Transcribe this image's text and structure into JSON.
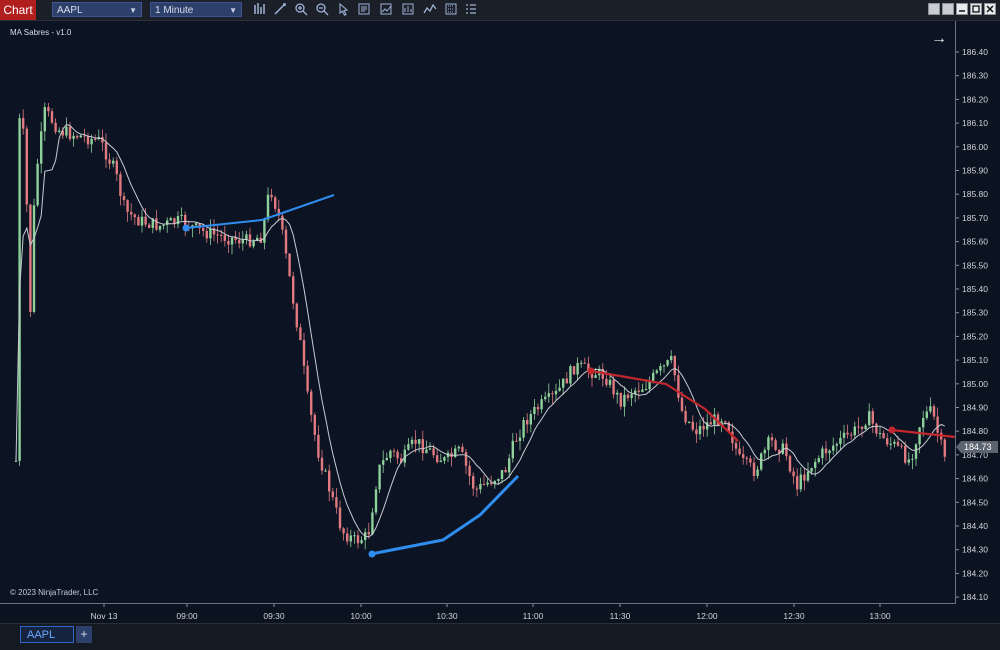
{
  "toolbar": {
    "chart_label": "Chart",
    "instrument": "AAPL",
    "interval": "1 Minute",
    "icons": [
      "bar-type-icon",
      "draw-icon",
      "zoom-in-icon",
      "zoom-out-icon",
      "pointer-icon",
      "properties-icon",
      "indicators-icon",
      "strategies-icon",
      "templates-icon",
      "data-box-icon",
      "menu-icon"
    ],
    "window_buttons": [
      "tile-icon",
      "restore-icon",
      "minimize-icon",
      "maximize-icon",
      "close-icon"
    ]
  },
  "indicator_label": "MA Sabres - v1.0",
  "copyright": "© 2023 NinjaTrader, LLC",
  "price_axis": {
    "labels": [
      "186.40",
      "186.30",
      "186.20",
      "186.10",
      "186.00",
      "185.90",
      "185.80",
      "185.70",
      "185.60",
      "185.50",
      "185.40",
      "185.30",
      "185.20",
      "185.10",
      "185.00",
      "184.90",
      "184.80",
      "184.70",
      "184.60",
      "184.50",
      "184.40",
      "184.30",
      "184.20",
      "184.10"
    ],
    "current_price": "184.73",
    "current_price_color": "#5c6470"
  },
  "time_axis": {
    "labels": [
      "Nov 13",
      "09:00",
      "09:30",
      "10:00",
      "10:30",
      "11:00",
      "11:30",
      "12:00",
      "12:30",
      "13:00"
    ]
  },
  "bottom_tabs": {
    "active": "AAPL",
    "add_label": "+"
  },
  "colors": {
    "up_candle": "#8fd19a",
    "down_candle": "#e07a80",
    "ma_line": "#c9ccd2",
    "bull_sabre": "#2f8df0",
    "bear_sabre": "#c3262c"
  }
}
